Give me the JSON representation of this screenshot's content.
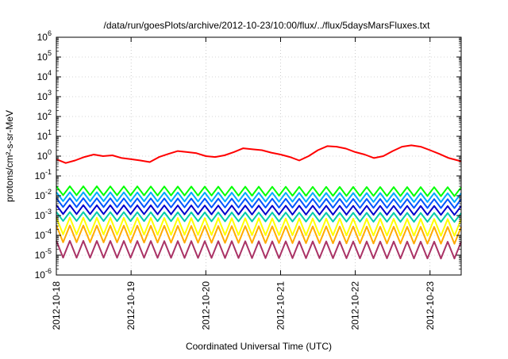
{
  "chart_data": {
    "type": "line",
    "title": "/data/run/goesPlots/archive/2012-10-23/10:00/flux/../flux/5daysMarsFluxes.txt",
    "xlabel": "Coordinated Universal Time (UTC)",
    "ylabel": "protons/cm²-s-sr-MeV",
    "x_type": "date",
    "xlim": [
      "2012-10-18T00:00",
      "2012-10-23T10:00"
    ],
    "x_tick_labels": [
      "2012-10-18",
      "2012-10-19",
      "2012-10-20",
      "2012-10-21",
      "2012-10-22",
      "2012-10-23"
    ],
    "y_scale": "log",
    "ylim": [
      1e-06,
      1000000.0
    ],
    "y_tick_labels": [
      {
        "base": "10",
        "exp": "-6"
      },
      {
        "base": "10",
        "exp": "-5"
      },
      {
        "base": "10",
        "exp": "-4"
      },
      {
        "base": "10",
        "exp": "-3"
      },
      {
        "base": "10",
        "exp": "-2"
      },
      {
        "base": "10",
        "exp": "-1"
      },
      {
        "base": "10",
        "exp": "0"
      },
      {
        "base": "10",
        "exp": "1"
      },
      {
        "base": "10",
        "exp": "2"
      },
      {
        "base": "10",
        "exp": "3"
      },
      {
        "base": "10",
        "exp": "4"
      },
      {
        "base": "10",
        "exp": "5"
      },
      {
        "base": "10",
        "exp": "6"
      }
    ],
    "grid": true,
    "series": [
      {
        "color": "#ff0000",
        "x": [
          "2012-10-18T00:00",
          "2012-10-18T03:00",
          "2012-10-18T06:00",
          "2012-10-18T09:00",
          "2012-10-18T12:00",
          "2012-10-18T15:00",
          "2012-10-18T18:00",
          "2012-10-18T21:00",
          "2012-10-19T00:00",
          "2012-10-19T03:00",
          "2012-10-19T06:00",
          "2012-10-19T09:00",
          "2012-10-19T12:00",
          "2012-10-19T15:00",
          "2012-10-19T18:00",
          "2012-10-19T21:00",
          "2012-10-20T00:00",
          "2012-10-20T03:00",
          "2012-10-20T06:00",
          "2012-10-20T09:00",
          "2012-10-20T12:00",
          "2012-10-20T15:00",
          "2012-10-20T18:00",
          "2012-10-20T21:00",
          "2012-10-21T00:00",
          "2012-10-21T03:00",
          "2012-10-21T06:00",
          "2012-10-21T09:00",
          "2012-10-21T12:00",
          "2012-10-21T15:00",
          "2012-10-21T18:00",
          "2012-10-21T21:00",
          "2012-10-22T00:00",
          "2012-10-22T03:00",
          "2012-10-22T06:00",
          "2012-10-22T09:00",
          "2012-10-22T12:00",
          "2012-10-22T15:00",
          "2012-10-22T18:00",
          "2012-10-22T21:00",
          "2012-10-23T00:00",
          "2012-10-23T03:00",
          "2012-10-23T06:00",
          "2012-10-23T09:00",
          "2012-10-23T10:00"
        ],
        "y": [
          0.7,
          0.45,
          0.6,
          0.9,
          1.2,
          1.0,
          1.1,
          0.8,
          0.7,
          0.6,
          0.5,
          0.9,
          1.3,
          1.8,
          1.6,
          1.4,
          1.0,
          0.9,
          1.1,
          1.6,
          2.5,
          2.2,
          2.0,
          1.5,
          1.2,
          0.9,
          0.6,
          1.0,
          2.0,
          3.2,
          3.0,
          2.4,
          1.6,
          1.2,
          0.8,
          1.0,
          1.8,
          3.0,
          3.5,
          3.0,
          2.0,
          1.3,
          0.8,
          0.6,
          0.55
        ]
      },
      {
        "color": "#00ff00",
        "x": [
          "2012-10-18T00:00",
          "2012-10-23T10:00"
        ],
        "y": [
          0.018,
          0.016
        ]
      },
      {
        "color": "#00aaff",
        "x": [
          "2012-10-18T00:00",
          "2012-10-23T10:00"
        ],
        "y": [
          0.009,
          0.008
        ]
      },
      {
        "color": "#0055ff",
        "x": [
          "2012-10-18T00:00",
          "2012-10-23T10:00"
        ],
        "y": [
          0.0045,
          0.004
        ]
      },
      {
        "color": "#0000cc",
        "x": [
          "2012-10-18T00:00",
          "2012-10-23T10:00"
        ],
        "y": [
          0.002,
          0.0018
        ]
      },
      {
        "color": "#00ccaa",
        "x": [
          "2012-10-18T00:00",
          "2012-10-23T10:00"
        ],
        "y": [
          0.0009,
          0.0008
        ]
      },
      {
        "color": "#ffff00",
        "x": [
          "2012-10-18T00:00",
          "2012-10-23T10:00"
        ],
        "y": [
          0.0003,
          0.00025
        ]
      },
      {
        "color": "#ffaa00",
        "x": [
          "2012-10-18T00:00",
          "2012-10-23T10:00"
        ],
        "y": [
          0.00012,
          0.0001
        ]
      },
      {
        "color": "#aa3366",
        "x": [
          "2012-10-18T00:00",
          "2012-10-23T10:00"
        ],
        "y": [
          2e-05,
          1.8e-05
        ]
      }
    ]
  }
}
